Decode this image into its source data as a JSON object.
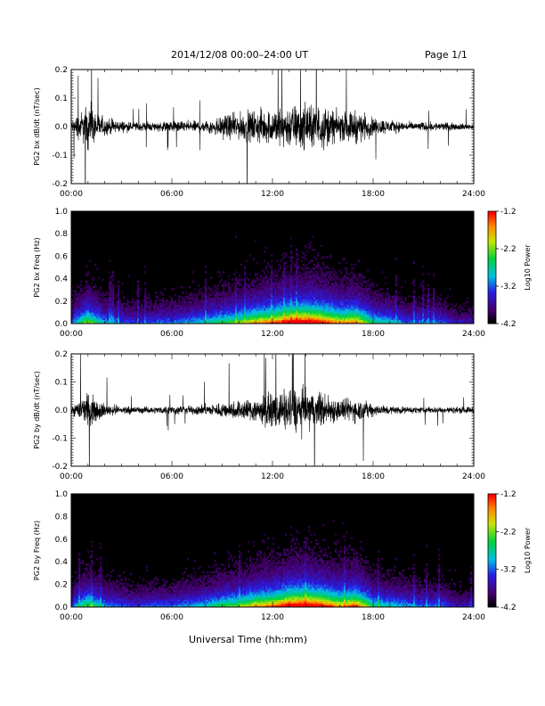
{
  "header": {
    "title": "2014/12/08  00:00–24:00 UT",
    "page": "Page 1/1"
  },
  "footer": {
    "xlabel": "Universal Time (hh:mm)"
  },
  "chart_data": [
    {
      "type": "line",
      "ylabel": "PG2 bx dB/dt (nT/sec)",
      "xlabel": "",
      "x_ticks": [
        "00:00",
        "06:00",
        "12:00",
        "18:00",
        "24:00"
      ],
      "xlim": [
        0,
        24
      ],
      "ylim": [
        -0.2,
        0.2
      ],
      "y_ticks": [
        -0.2,
        -0.1,
        0.0,
        0.1,
        0.2
      ],
      "y_tick_labels": [
        "-0.2",
        "-0.1",
        "0.0",
        "0.1",
        "0.2"
      ],
      "series": [
        {
          "color": "#000000",
          "envelope_hours": [
            0,
            1,
            2,
            3,
            4,
            5,
            6,
            7,
            8,
            9,
            10,
            11,
            12,
            13,
            14,
            15,
            16,
            17,
            18,
            19,
            20,
            21,
            22,
            23,
            24
          ],
          "envelope_amplitude": [
            0.05,
            0.2,
            0.08,
            0.05,
            0.04,
            0.04,
            0.05,
            0.05,
            0.06,
            0.1,
            0.12,
            0.15,
            0.16,
            0.2,
            0.2,
            0.2,
            0.12,
            0.15,
            0.08,
            0.06,
            0.04,
            0.04,
            0.04,
            0.03,
            0.03
          ]
        }
      ]
    },
    {
      "type": "heatmap",
      "ylabel": "PG2 bx Freq (Hz)",
      "xlabel": "",
      "x_ticks": [
        "00:00",
        "06:00",
        "12:00",
        "18:00",
        "24:00"
      ],
      "xlim": [
        0,
        24
      ],
      "ylim": [
        0,
        1.0
      ],
      "y_ticks": [
        0.0,
        0.2,
        0.4,
        0.6,
        0.8,
        1.0
      ],
      "y_tick_labels": [
        "0.0",
        "0.2",
        "0.4",
        "0.6",
        "0.8",
        "1.0"
      ],
      "colorbar": {
        "label": "Log10 Power",
        "range": [
          -4.2,
          -1.2
        ],
        "ticks": [
          "-1.2",
          "-2.2",
          "-3.2",
          "-4.2"
        ]
      },
      "activity_hours": [
        0,
        1,
        2,
        3,
        4,
        5,
        6,
        7,
        8,
        9,
        10,
        11,
        12,
        13,
        14,
        15,
        16,
        17,
        18,
        19,
        20,
        21,
        22,
        23,
        24
      ],
      "activity_level": [
        0.3,
        0.6,
        0.35,
        0.3,
        0.25,
        0.3,
        0.3,
        0.35,
        0.4,
        0.5,
        0.55,
        0.7,
        0.75,
        0.9,
        0.95,
        0.85,
        0.7,
        0.75,
        0.45,
        0.4,
        0.3,
        0.3,
        0.3,
        0.2,
        0.2
      ]
    },
    {
      "type": "line",
      "ylabel": "PG2 by dB/dt (nT/sec)",
      "xlabel": "",
      "x_ticks": [
        "00:00",
        "06:00",
        "12:00",
        "18:00",
        "24:00"
      ],
      "xlim": [
        0,
        24
      ],
      "ylim": [
        -0.2,
        0.2
      ],
      "y_ticks": [
        -0.2,
        -0.1,
        0.0,
        0.1,
        0.2
      ],
      "y_tick_labels": [
        "-0.2",
        "-0.1",
        "0.0",
        "0.1",
        "0.2"
      ],
      "series": [
        {
          "color": "#000000",
          "envelope_hours": [
            0,
            1,
            2,
            3,
            4,
            5,
            6,
            7,
            8,
            9,
            10,
            11,
            12,
            13,
            14,
            15,
            16,
            17,
            18,
            19,
            20,
            21,
            22,
            23,
            24
          ],
          "envelope_amplitude": [
            0.04,
            0.15,
            0.06,
            0.04,
            0.03,
            0.03,
            0.04,
            0.04,
            0.05,
            0.07,
            0.09,
            0.12,
            0.14,
            0.2,
            0.2,
            0.16,
            0.1,
            0.11,
            0.06,
            0.04,
            0.03,
            0.03,
            0.03,
            0.03,
            0.03
          ]
        }
      ]
    },
    {
      "type": "heatmap",
      "ylabel": "PG2 by Freq (Hz)",
      "xlabel": "",
      "x_ticks": [
        "00:00",
        "06:00",
        "12:00",
        "18:00",
        "24:00"
      ],
      "xlim": [
        0,
        24
      ],
      "ylim": [
        0,
        1.0
      ],
      "y_ticks": [
        0.0,
        0.2,
        0.4,
        0.6,
        0.8,
        1.0
      ],
      "y_tick_labels": [
        "0.0",
        "0.2",
        "0.4",
        "0.6",
        "0.8",
        "1.0"
      ],
      "colorbar": {
        "label": "Log10 Power",
        "range": [
          -4.2,
          -1.2
        ],
        "ticks": [
          "-1.2",
          "-2.2",
          "-3.2",
          "-4.2"
        ]
      },
      "activity_hours": [
        0,
        1,
        2,
        3,
        4,
        5,
        6,
        7,
        8,
        9,
        10,
        11,
        12,
        13,
        14,
        15,
        16,
        17,
        18,
        19,
        20,
        21,
        22,
        23,
        24
      ],
      "activity_level": [
        0.3,
        0.55,
        0.35,
        0.3,
        0.25,
        0.3,
        0.3,
        0.35,
        0.4,
        0.5,
        0.55,
        0.7,
        0.75,
        0.9,
        0.95,
        0.85,
        0.7,
        0.8,
        0.45,
        0.4,
        0.35,
        0.3,
        0.3,
        0.2,
        0.2
      ]
    }
  ]
}
